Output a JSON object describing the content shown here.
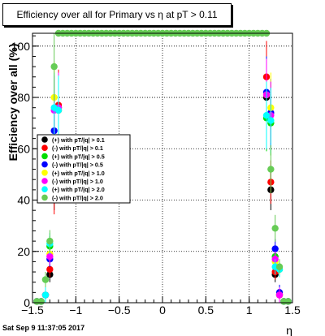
{
  "title": "Efficiency over all for Primary vs   η at pT > 0.11",
  "footer": "Sat Sep  9 11:37:05 2017",
  "chart_data": {
    "type": "scatter",
    "xlabel": "η",
    "ylabel": "Efficiency over all (%)",
    "xlim": [
      -1.5,
      1.5
    ],
    "ylim": [
      0,
      105
    ],
    "x_ticks": [
      "−1.5",
      "−1",
      "−0.5",
      "0",
      "0.5",
      "1",
      "1.5"
    ],
    "y_ticks": [
      "0",
      "20",
      "40",
      "60",
      "80",
      "100"
    ],
    "grid": true,
    "legend_position": "left-middle",
    "series": [
      {
        "name": "(+) with pT/|q| > 0.1",
        "color": "#000000",
        "x": [
          -1.45,
          -1.4,
          -1.35,
          -1.3,
          -1.25,
          -1.2,
          1.2,
          1.25,
          1.3,
          1.35,
          1.4,
          1.45
        ],
        "y": [
          0.5,
          0.5,
          3,
          11,
          44,
          76,
          80,
          44,
          11,
          3,
          0.5,
          0.5
        ]
      },
      {
        "name": "(-) with pT/|q| > 0.1",
        "color": "#ff0000",
        "x": [
          -1.45,
          -1.4,
          -1.35,
          -1.3,
          -1.25,
          -1.2,
          1.2,
          1.25,
          1.3,
          1.35,
          1.4,
          1.45
        ],
        "y": [
          0.5,
          0.5,
          3,
          13,
          42,
          77,
          88,
          47,
          12,
          3,
          0.5,
          0.5
        ]
      },
      {
        "name": "(+) with pT/|q| > 0.5",
        "color": "#00dd00",
        "x": [
          -1.45,
          -1.4,
          -1.35,
          -1.3,
          -1.25,
          -1.2,
          1.2,
          1.25,
          1.3,
          1.35,
          1.4,
          1.45
        ],
        "y": [
          0.5,
          0.5,
          9,
          22,
          62,
          75,
          72,
          70,
          18,
          13,
          0.5,
          0.5
        ]
      },
      {
        "name": "(-) with pT/|q| > 0.5",
        "color": "#0000ff",
        "x": [
          -1.45,
          -1.4,
          -1.35,
          -1.3,
          -1.25,
          -1.2,
          1.2,
          1.25,
          1.3,
          1.35,
          1.4,
          1.45
        ],
        "y": [
          0.5,
          0.5,
          3,
          17,
          67,
          75,
          82,
          74,
          21,
          4,
          0.5,
          0.5
        ]
      },
      {
        "name": "(+) with pT/|q| > 1.0",
        "color": "#ffff00",
        "x": [
          -1.45,
          -1.4,
          -1.35,
          -1.3,
          -1.25,
          -1.2,
          1.2,
          1.25,
          1.3,
          1.35,
          1.4,
          1.45
        ],
        "y": [
          0.5,
          0.5,
          3,
          19,
          80,
          75,
          81,
          76,
          16,
          3,
          0.5,
          0.5
        ]
      },
      {
        "name": "(-) with pT/|q| > 1.0",
        "color": "#ff00ff",
        "x": [
          -1.45,
          -1.4,
          -1.35,
          -1.3,
          -1.25,
          -1.2,
          1.2,
          1.25,
          1.3,
          1.35,
          1.4,
          1.45
        ],
        "y": [
          0.5,
          0.5,
          3,
          18,
          75,
          76,
          81,
          73,
          17,
          3,
          0.5,
          0.5
        ]
      },
      {
        "name": "(+) with pT/|q| > 2.0",
        "color": "#00ffff",
        "x": [
          -1.45,
          -1.4,
          -1.35,
          -1.3,
          -1.25,
          -1.2,
          1.2,
          1.25,
          1.3,
          1.35,
          1.4,
          1.45
        ],
        "y": [
          0.5,
          0.5,
          3,
          23,
          76,
          75,
          73,
          71,
          14,
          13,
          0.5,
          0.5
        ]
      },
      {
        "name": "(-) with pT/|q| > 2.0",
        "color": "#66cc55",
        "x": [
          -1.45,
          -1.4,
          -1.35,
          -1.3,
          -1.25,
          -1.2,
          -1.15,
          -1.1,
          -1.05,
          -1.0,
          -0.95,
          -0.9,
          -0.85,
          -0.8,
          -0.75,
          -0.7,
          -0.65,
          -0.6,
          -0.55,
          -0.5,
          -0.45,
          -0.4,
          -0.35,
          -0.3,
          -0.25,
          -0.2,
          -0.15,
          -0.1,
          -0.05,
          0.0,
          0.05,
          0.1,
          0.15,
          0.2,
          0.25,
          0.3,
          0.35,
          0.4,
          0.45,
          0.5,
          0.55,
          0.6,
          0.65,
          0.7,
          0.75,
          0.8,
          0.85,
          0.9,
          0.95,
          1.0,
          1.05,
          1.1,
          1.15,
          1.2,
          1.25,
          1.3,
          1.35,
          1.4,
          1.45
        ],
        "y": [
          0.5,
          0.5,
          9,
          24,
          92,
          105,
          105,
          105,
          105,
          105,
          105,
          105,
          105,
          105,
          105,
          105,
          105,
          105,
          105,
          105,
          105,
          105,
          105,
          105,
          105,
          105,
          105,
          105,
          105,
          105,
          105,
          105,
          105,
          105,
          105,
          105,
          105,
          105,
          105,
          105,
          105,
          105,
          105,
          105,
          105,
          105,
          105,
          105,
          105,
          105,
          105,
          105,
          105,
          105,
          52,
          29,
          14,
          0.5,
          0.5
        ]
      }
    ]
  }
}
